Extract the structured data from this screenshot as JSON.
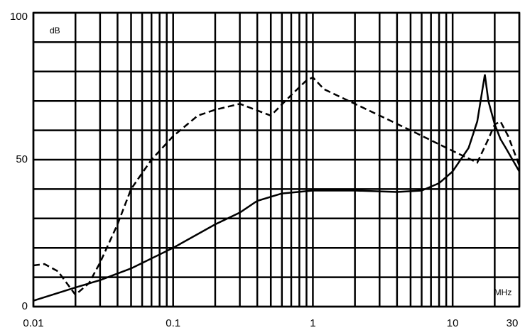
{
  "chart_data": {
    "type": "line",
    "x_scale": "log",
    "y_label": "dB",
    "x_label": "MHz",
    "xlim": [
      0.01,
      30
    ],
    "ylim": [
      0,
      100
    ],
    "xticks": [
      0.01,
      0.1,
      1,
      10,
      30
    ],
    "yticks": [
      0,
      50,
      100
    ],
    "xgrid": [
      0.01,
      0.02,
      0.03,
      0.04,
      0.05,
      0.06,
      0.07,
      0.08,
      0.09,
      0.1,
      0.2,
      0.3,
      0.4,
      0.5,
      0.6,
      0.7,
      0.8,
      0.9,
      1,
      2,
      3,
      4,
      5,
      6,
      7,
      8,
      9,
      10,
      20,
      30
    ],
    "ygrid": [
      0,
      10,
      20,
      30,
      40,
      50,
      60,
      70,
      80,
      90,
      100
    ],
    "series": [
      {
        "color": "#000000",
        "dash": false,
        "x": [
          0.01,
          0.02,
          0.03,
          0.05,
          0.1,
          0.2,
          0.3,
          0.4,
          0.6,
          1,
          2,
          4,
          6,
          8,
          10,
          13,
          15,
          17,
          18,
          20,
          22,
          24,
          30
        ],
        "values": [
          2,
          6.5,
          9,
          13,
          20,
          28,
          32,
          36,
          38.5,
          39.5,
          39.5,
          39,
          39.5,
          42,
          46,
          54,
          63,
          79,
          70,
          62,
          57,
          54,
          46
        ]
      },
      {
        "color": "#000000",
        "dash": true,
        "x": [
          0.01,
          0.012,
          0.015,
          0.02,
          0.025,
          0.03,
          0.04,
          0.05,
          0.07,
          0.1,
          0.15,
          0.2,
          0.3,
          0.5,
          0.7,
          0.9,
          1,
          1.2,
          2,
          5,
          10,
          15,
          18,
          20,
          22,
          25,
          30
        ],
        "values": [
          14,
          14.5,
          12,
          4,
          8,
          15,
          28,
          40,
          50,
          58,
          65,
          67,
          69,
          65,
          72,
          77,
          78,
          74,
          69,
          60,
          53,
          49,
          57,
          62,
          63,
          58,
          48
        ]
      }
    ]
  }
}
